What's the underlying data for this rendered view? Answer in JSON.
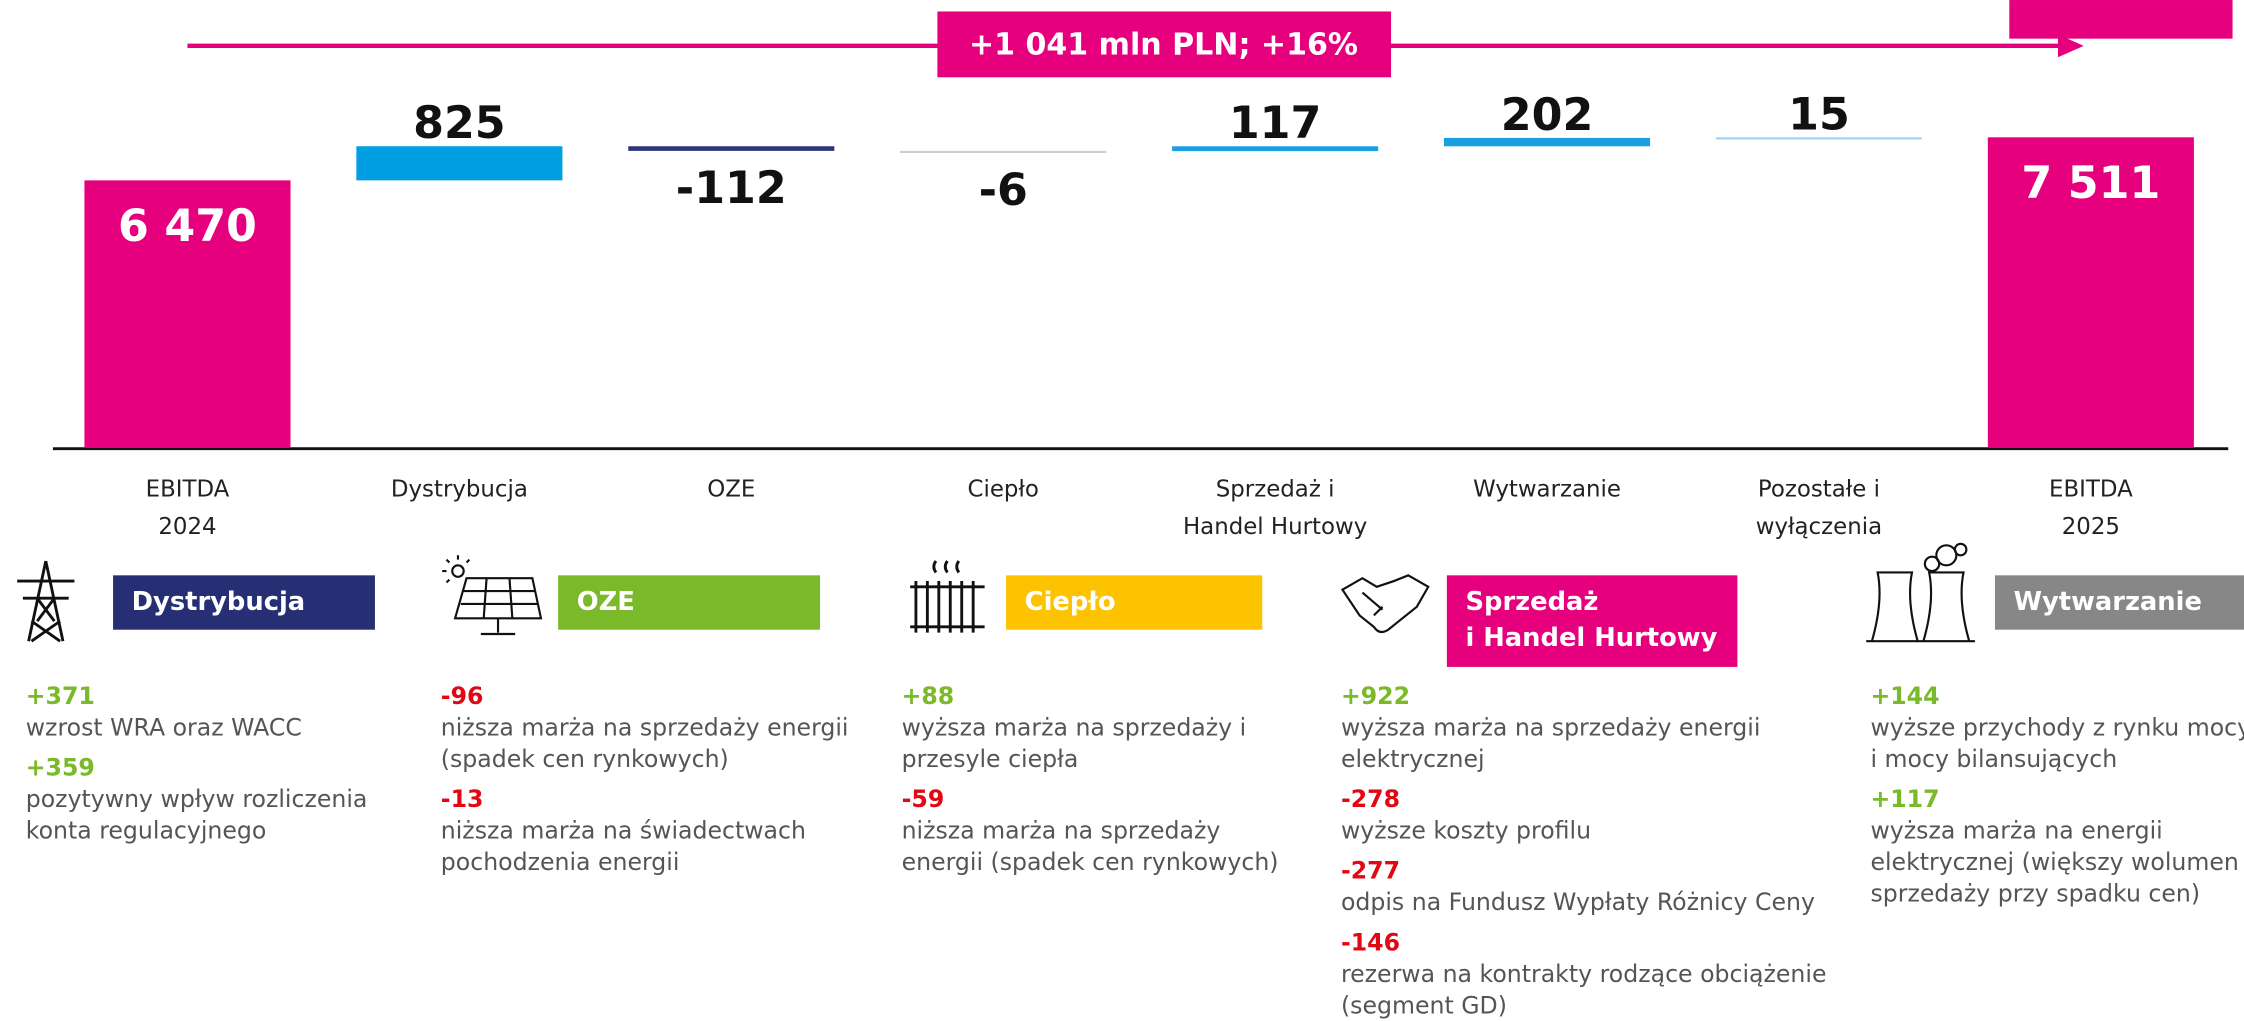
{
  "chart_data": {
    "type": "waterfall",
    "annotation": "+1 041 mln PLN; +16%",
    "categories": [
      [
        "EBITDA",
        "2024"
      ],
      [
        "Dystrybucja"
      ],
      [
        "OZE"
      ],
      [
        "Ciepło"
      ],
      [
        "Sprzedaż i",
        "Handel Hurtowy"
      ],
      [
        "Wytwarzanie"
      ],
      [
        "Pozostałe i",
        "wyłączenia"
      ],
      [
        "EBITDA",
        "2025"
      ]
    ],
    "values": [
      6470,
      825,
      -112,
      -6,
      117,
      202,
      15,
      7511
    ],
    "value_labels": [
      "6 470",
      "825",
      "-112",
      "-6",
      "117",
      "202",
      "15",
      "7 511"
    ],
    "totals": [
      true,
      false,
      false,
      false,
      false,
      false,
      false,
      true
    ],
    "colors": [
      "#e6007e",
      "#009fe3",
      "#2b3679",
      "#c9cdd6",
      "#1a9fe0",
      "#1a9fe0",
      "#9fd3f1",
      "#e6007e"
    ],
    "ylim": [
      0,
      10000
    ]
  },
  "panels": [
    {
      "title": [
        "Dystrybucja"
      ],
      "color": "#262f73",
      "items": [
        {
          "value": "+371",
          "text": [
            "wzrost WRA oraz WACC"
          ]
        },
        {
          "value": "+359",
          "text": [
            "pozytywny wpływ rozliczenia",
            "konta regulacyjnego"
          ]
        }
      ]
    },
    {
      "title": [
        "OZE"
      ],
      "color": "#7ab929",
      "items": [
        {
          "value": "-96",
          "text": [
            "niższa marża na sprzedaży energii",
            "(spadek cen rynkowych)"
          ]
        },
        {
          "value": "-13",
          "text": [
            "niższa marża na świadectwach",
            "pochodzenia energii"
          ]
        }
      ]
    },
    {
      "title": [
        "Ciepło"
      ],
      "color": "#fdc300",
      "items": [
        {
          "value": "+88",
          "text": [
            "wyższa marża na sprzedaży i",
            "przesyle ciepła"
          ]
        },
        {
          "value": "-59",
          "text": [
            "niższa marża na sprzedaży",
            "energii (spadek cen rynkowych)"
          ]
        }
      ]
    },
    {
      "title": [
        "Sprzedaż",
        "i Handel Hurtowy"
      ],
      "color": "#e6007e",
      "items": [
        {
          "value": "+922",
          "text": [
            "wyższa marża na sprzedaży energii",
            "elektrycznej"
          ]
        },
        {
          "value": "-278",
          "text": [
            "wyższe koszty profilu"
          ]
        },
        {
          "value": "-277",
          "text": [
            "odpis na Fundusz Wypłaty Różnicy Ceny"
          ]
        },
        {
          "value": "-146",
          "text": [
            "rezerwa na kontrakty rodzące obciążenie",
            "(segment GD)"
          ]
        }
      ]
    },
    {
      "title": [
        "Wytwarzanie"
      ],
      "color": "#878787",
      "items": [
        {
          "value": "+144",
          "text": [
            "wyższe przychody z rynku mocy",
            "i mocy bilansujących"
          ]
        },
        {
          "value": "+117",
          "text": [
            "wyższa marża na energii",
            "elektrycznej (większy wolumen",
            "sprzedaży przy spadku cen)"
          ]
        }
      ]
    }
  ]
}
